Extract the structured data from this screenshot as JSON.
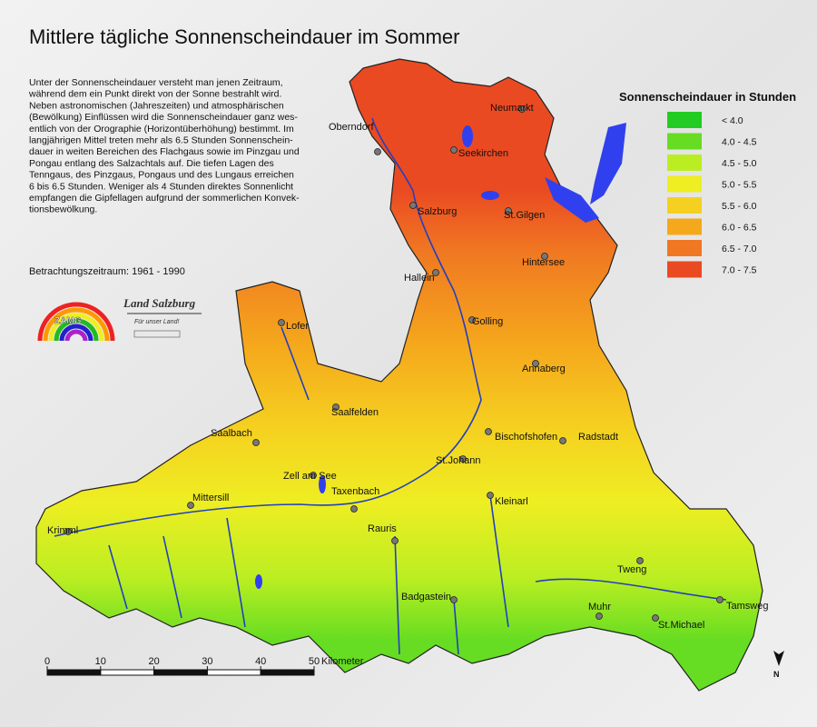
{
  "title": "Mittlere tägliche Sonnenscheindauer im Sommer",
  "description": [
    "Unter der Sonnenscheindauer versteht man jenen Zeitraum,",
    "während dem ein Punkt direkt von der Sonne bestrahlt wird.",
    "Neben astronomischen (Jahreszeiten) und atmosphärischen",
    "(Bewölkung) Einflüssen wird die Sonnenscheindauer ganz wes-",
    "entlich von der Orographie (Horizontüberhöhung) bestimmt. Im",
    "langjährigen Mittel treten mehr als 6.5 Stunden Sonnenschein-",
    "dauer in weiten Bereichen des Flachgaus sowie im Pinzgau und",
    "Pongau entlang des Salzachtals auf. Die tiefen Lagen des",
    "Tenngaus, des Pinzgaus, Pongaus und des Lungaus erreichen",
    "6 bis 6.5 Stunden. Weniger als 4 Stunden direktes Sonnenlicht",
    "empfangen die Gipfellagen aufgrund der sommerlichen Konvek-",
    "tionsbewölkung."
  ],
  "period": "Betrachtungszeitraum: 1961 - 1990",
  "logos": {
    "zamg": "ZAMG",
    "land": "Land Salzburg",
    "motto": "Für unser Land!"
  },
  "legend": {
    "title": "Sonnenscheindauer in Stunden",
    "items": [
      {
        "label": "< 4.0",
        "color": "#22cc22"
      },
      {
        "label": "4.0 - 4.5",
        "color": "#66dd22"
      },
      {
        "label": "4.5 - 5.0",
        "color": "#bbee22"
      },
      {
        "label": "5.0 - 5.5",
        "color": "#eeee22"
      },
      {
        "label": "5.5 - 6.0",
        "color": "#f5d020"
      },
      {
        "label": "6.0 - 6.5",
        "color": "#f5a81c"
      },
      {
        "label": "6.5 - 7.0",
        "color": "#f07822"
      },
      {
        "label": "7.0 - 7.5",
        "color": "#ea4a22"
      }
    ]
  },
  "towns": [
    "Oberndorf",
    "Neumarkt",
    "Seekirchen",
    "Salzburg",
    "St.Gilgen",
    "Hallein",
    "Hintersee",
    "Golling",
    "Lofer",
    "Annaberg",
    "Saalfelden",
    "Bischofshofen",
    "Radstadt",
    "Saalbach",
    "St.Johann",
    "Zell am See",
    "Mittersill",
    "Taxenbach",
    "Kleinarl",
    "Krimml",
    "Rauris",
    "Tweng",
    "Badgastein",
    "Muhr",
    "Tamsweg",
    "St.Michael"
  ],
  "scale": {
    "ticks": [
      0,
      10,
      20,
      30,
      40,
      50
    ],
    "unit": "Kilometer"
  },
  "north": "N"
}
